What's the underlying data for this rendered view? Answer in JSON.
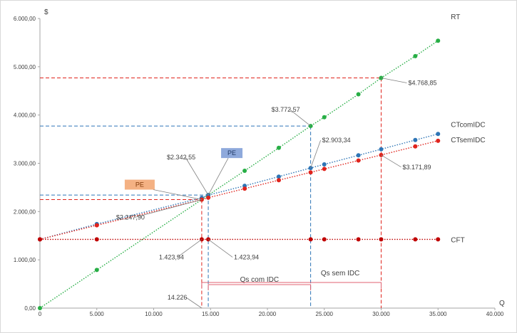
{
  "chart_data": {
    "type": "scatter",
    "y_axis_symbol": "$",
    "x_axis_symbol": "Q",
    "xlim": [
      0,
      40000
    ],
    "ylim": [
      0,
      6000
    ],
    "x_ticks": [
      "0",
      "5.000",
      "10.000",
      "15.000",
      "20.000",
      "25.000",
      "30.000",
      "35.000",
      "40.000"
    ],
    "x_tick_values": [
      0,
      5000,
      10000,
      15000,
      20000,
      25000,
      30000,
      35000,
      40000
    ],
    "y_ticks": [
      "0,00",
      "1.000,00",
      "2.000,00",
      "3.000,00",
      "4.000,00",
      "5.000,00",
      "6.000,00"
    ],
    "y_tick_values": [
      0,
      1000,
      2000,
      3000,
      4000,
      5000,
      6000
    ],
    "grid": false,
    "colors": {
      "RT": "#27ae45",
      "CTcomIDC": "#2e75b6",
      "CTsemIDC": "#e0231c",
      "CFT": "#c00000",
      "pe_blue_box": "#8ea9db",
      "pe_red_box": "#f4b183",
      "bracket": "#e06070"
    },
    "series": [
      {
        "name": "RT",
        "x": [
          0,
          5000,
          14226,
          14800,
          18000,
          21000,
          23800,
          25000,
          28000,
          30000,
          33000,
          35000
        ],
        "y": [
          0,
          790,
          2248,
          2342,
          2845,
          3320,
          3773,
          3955,
          4430,
          4769,
          5220,
          5540
        ]
      },
      {
        "name": "CTcomIDC",
        "x": [
          0,
          5000,
          14226,
          14800,
          18000,
          21000,
          23800,
          25000,
          28000,
          30000,
          33000,
          35000
        ],
        "y": [
          1424,
          1741,
          2285,
          2342,
          2533,
          2724,
          2903,
          2978,
          3165,
          3292,
          3482,
          3608
        ]
      },
      {
        "name": "CTsemIDC",
        "x": [
          0,
          5000,
          14226,
          14800,
          18000,
          21000,
          23800,
          25000,
          28000,
          30000,
          33000,
          35000
        ],
        "y": [
          1424,
          1716,
          2248,
          2287,
          2475,
          2650,
          2812,
          2883,
          3058,
          3172,
          3350,
          3467
        ]
      },
      {
        "name": "CFT",
        "x": [
          0,
          5000,
          14226,
          14800,
          23800,
          25000,
          28000,
          30000,
          33000,
          35000
        ],
        "y": [
          1424,
          1424,
          1424,
          1424,
          1424,
          1424,
          1424,
          1424,
          1424,
          1424
        ]
      }
    ],
    "annotations": [
      {
        "text": "$4.768,85",
        "x": 30000,
        "y": 4769
      },
      {
        "text": "$3.772,57",
        "x": 23800,
        "y": 3773
      },
      {
        "text": "$2.903,34",
        "x": 23800,
        "y": 2903
      },
      {
        "text": "$3.171,89",
        "x": 30000,
        "y": 3172
      },
      {
        "text": "$2.342,55",
        "x": 14800,
        "y": 2342
      },
      {
        "text": "$2.247,90",
        "x": 14226,
        "y": 2248
      },
      {
        "text": "1.423,94",
        "x": 14226,
        "y": 1424
      },
      {
        "text": "1.423,94",
        "x": 14800,
        "y": 1424
      },
      {
        "text": "14.226",
        "x": 14226,
        "y": 0
      }
    ],
    "pe_labels": [
      "PE",
      "PE"
    ],
    "bracket_labels": [
      "Qs com IDC",
      "Qs sem IDC"
    ]
  }
}
